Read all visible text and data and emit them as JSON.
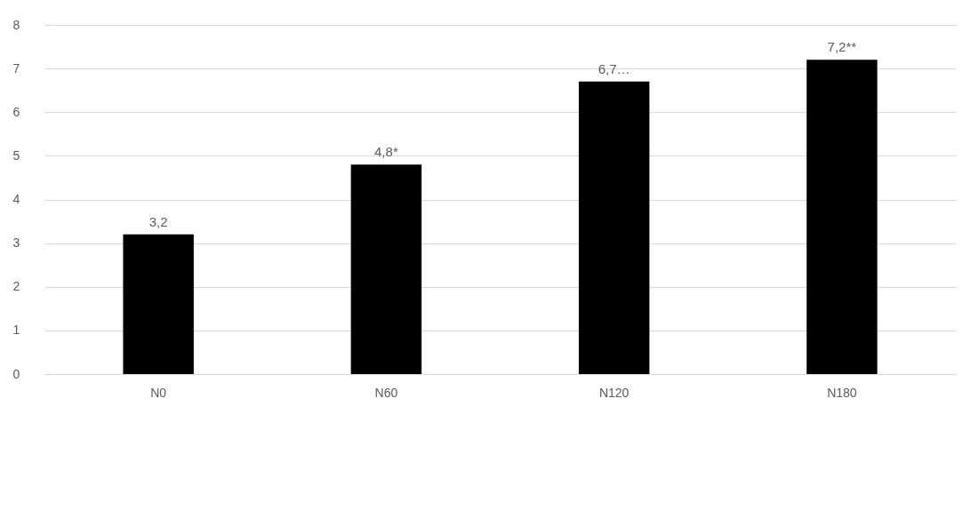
{
  "chart_data": {
    "type": "bar",
    "categories": [
      "N0",
      "N60",
      "N120",
      "N180"
    ],
    "values": [
      3.2,
      4.8,
      6.7,
      7.2
    ],
    "value_labels": [
      "3,2",
      "4,8*",
      "6,7…",
      "7,2**"
    ],
    "color": "#000000",
    "ylim": [
      0,
      8
    ],
    "yticks": [
      0,
      1,
      2,
      3,
      4,
      5,
      6,
      7,
      8
    ],
    "grid": "y"
  }
}
